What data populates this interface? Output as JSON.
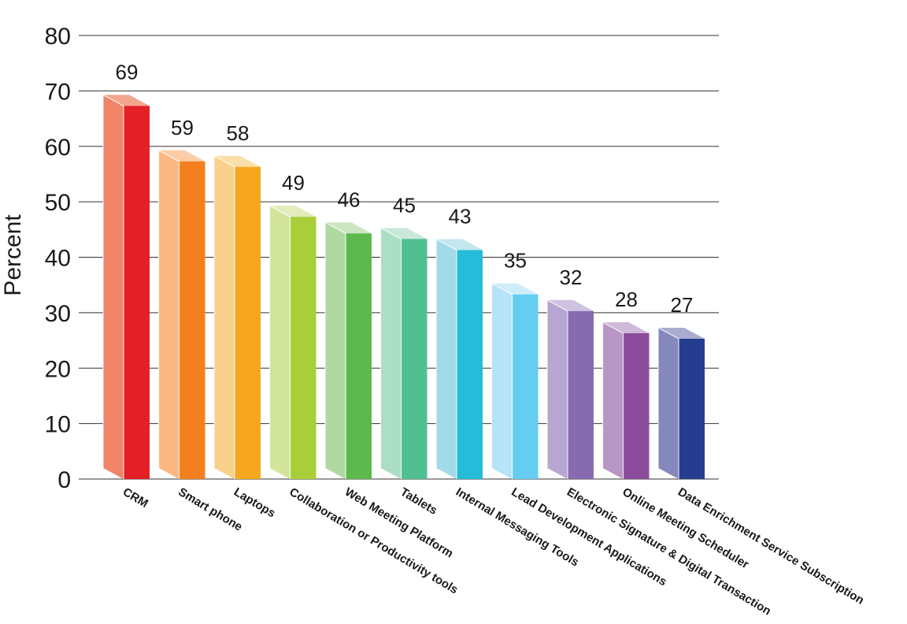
{
  "chart_data": {
    "type": "bar",
    "ylabel": "Percent",
    "ylim": [
      0,
      80
    ],
    "yticks": [
      "0",
      "10",
      "20",
      "30",
      "40",
      "50",
      "60",
      "70",
      "80"
    ],
    "grid": true,
    "categories": [
      "CRM",
      "Smart phone",
      "Laptops",
      "Collaboration or Productivity tools",
      "Web Meeting Platform",
      "Tablets",
      "Internal Messaging Tools",
      "Lead Development Applications",
      "Electronic Signature & Digital Transaction",
      "Online Meeting Scheduler",
      "Data Enrichment Service Subscription"
    ],
    "values": [
      69,
      59,
      58,
      49,
      46,
      45,
      43,
      35,
      32,
      28,
      27
    ],
    "value_labels": [
      "69",
      "59",
      "58",
      "49",
      "46",
      "45",
      "43",
      "35",
      "32",
      "28",
      "27"
    ],
    "colors": [
      {
        "front": "#e41f26",
        "side": "#ef8468",
        "top": "#f3a58f"
      },
      {
        "front": "#f47f20",
        "side": "#fbb883",
        "top": "#fccda4"
      },
      {
        "front": "#f6a71e",
        "side": "#f9d089",
        "top": "#fbdea9"
      },
      {
        "front": "#a8ce3a",
        "side": "#d3e49b",
        "top": "#e2edb9"
      },
      {
        "front": "#5db94d",
        "side": "#b0d9a2",
        "top": "#cbe6c0"
      },
      {
        "front": "#52bf91",
        "side": "#acdec6",
        "top": "#c8e9d9"
      },
      {
        "front": "#26bcd7",
        "side": "#a2dbe8",
        "top": "#c2e7ef"
      },
      {
        "front": "#65cdf1",
        "side": "#b5e3f8",
        "top": "#cfecfa"
      },
      {
        "front": "#876baf",
        "side": "#b7a6d1",
        "top": "#cfc3e2"
      },
      {
        "front": "#8c4c9c",
        "side": "#b896c5",
        "top": "#d1b9da"
      },
      {
        "front": "#263d8f",
        "side": "#8588bb",
        "top": "#aaadd0"
      }
    ]
  }
}
